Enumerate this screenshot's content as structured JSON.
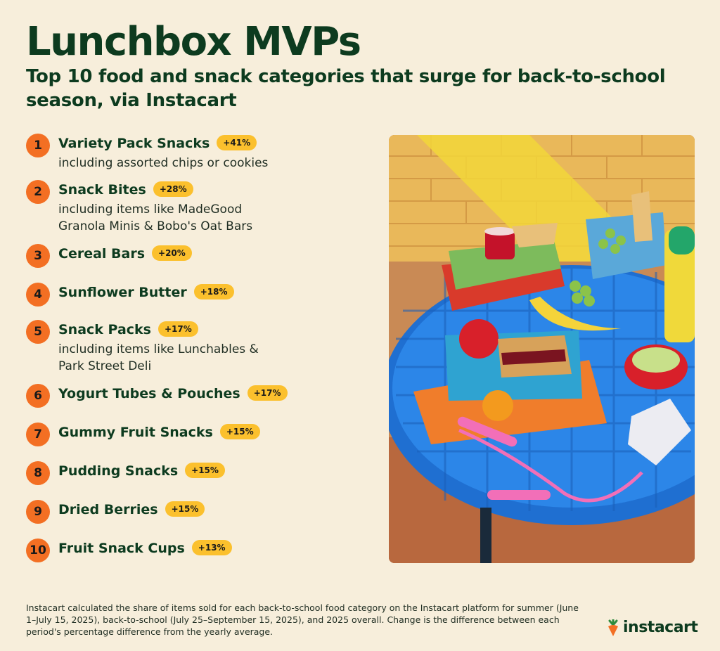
{
  "header": {
    "title": "Lunchbox MVPs",
    "subtitle": "Top 10 food and snack categories that surge for back-to-school season, via Instacart"
  },
  "items": [
    {
      "rank": "1",
      "name": "Variety Pack Snacks",
      "change": "+41%",
      "desc": "including assorted chips or cookies"
    },
    {
      "rank": "2",
      "name": "Snack Bites",
      "change": "+28%",
      "desc": "including items like MadeGood Granola Minis & Bobo's Oat Bars"
    },
    {
      "rank": "3",
      "name": "Cereal Bars",
      "change": "+20%",
      "desc": ""
    },
    {
      "rank": "4",
      "name": "Sunflower Butter",
      "change": "+18%",
      "desc": ""
    },
    {
      "rank": "5",
      "name": "Snack Packs",
      "change": "+17%",
      "desc": "including items like Lunchables & Park Street Deli"
    },
    {
      "rank": "6",
      "name": "Yogurt Tubes & Pouches",
      "change": "+17%",
      "desc": ""
    },
    {
      "rank": "7",
      "name": "Gummy Fruit Snacks",
      "change": "+15%",
      "desc": ""
    },
    {
      "rank": "8",
      "name": "Pudding Snacks",
      "change": "+15%",
      "desc": ""
    },
    {
      "rank": "9",
      "name": "Dried Berries",
      "change": "+15%",
      "desc": ""
    },
    {
      "rank": "10",
      "name": "Fruit Snack Cups",
      "change": "+13%",
      "desc": ""
    }
  ],
  "footnote": "Instacart calculated the share of items sold for each back-to-school food category on the Instacart platform for summer (June 1–July 15, 2025), back-to-school (July 25–September 15, 2025), and 2025 overall. Change is the difference between each period's percentage difference from the yearly average.",
  "brand": {
    "name": "instacart",
    "icon": "carrot-icon"
  },
  "colors": {
    "background": "#f7eedb",
    "text": "#0d3b1f",
    "rank_circle": "#f36f23",
    "badge": "#fbc02d"
  }
}
